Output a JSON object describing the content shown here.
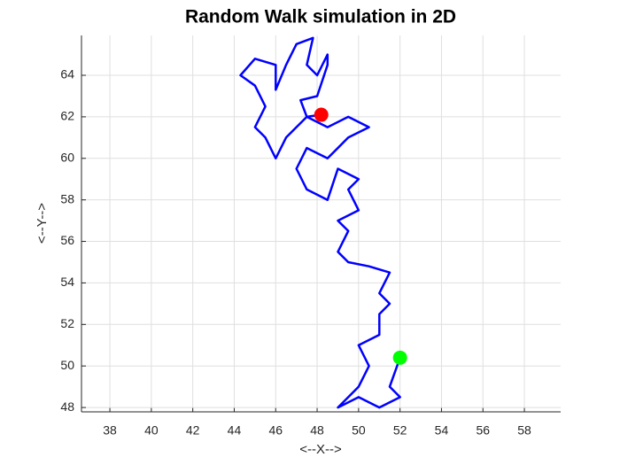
{
  "chart_data": {
    "type": "line",
    "title": "Random Walk simulation in 2D",
    "xlabel": "<--X-->",
    "ylabel": "<--Y-->",
    "xlim": [
      36.63,
      59.75
    ],
    "ylim": [
      47.79,
      65.92
    ],
    "xticks": [
      38,
      40,
      42,
      44,
      46,
      48,
      50,
      52,
      54,
      56,
      58
    ],
    "yticks": [
      48,
      50,
      52,
      54,
      56,
      58,
      60,
      62,
      64
    ],
    "grid": true,
    "series": [
      {
        "color": "#0000ff",
        "marker": false,
        "x": [
          52,
          51.5,
          52,
          51,
          50,
          49,
          50,
          50.5,
          50,
          51,
          51,
          51.5,
          51,
          51.5,
          50.5,
          49.5,
          49,
          49.5,
          49,
          50,
          49.5,
          50,
          49,
          48.5,
          47.5,
          47,
          47.5,
          48.5,
          49.5,
          50.5,
          49.5,
          48.5,
          47.5,
          46.5,
          46,
          45.5,
          45,
          45.5,
          45,
          44.3,
          45,
          46,
          46,
          46.5,
          47,
          47.8,
          47.5,
          48,
          48.5,
          48.5,
          48,
          47.2,
          47.5,
          48.2
        ],
        "values": [
          50.4,
          49,
          48.5,
          48,
          48.5,
          48,
          49,
          50,
          51,
          51.5,
          52.5,
          53,
          53.5,
          54.5,
          54.8,
          55,
          55.5,
          56.5,
          57,
          57.5,
          58.5,
          59,
          59.5,
          58,
          58.5,
          59.5,
          60.5,
          60,
          61,
          61.5,
          62,
          61.5,
          62,
          61,
          60,
          61,
          61.5,
          62.5,
          63.5,
          64,
          64.8,
          64.5,
          63.3,
          64.5,
          65.5,
          65.8,
          64.5,
          64,
          65,
          64.5,
          63,
          62.8,
          62,
          62.1
        ]
      },
      {
        "color": "#00ff00",
        "marker": true,
        "x": [
          52
        ],
        "values": [
          50.4
        ]
      },
      {
        "color": "#ff0000",
        "marker": true,
        "x": [
          48.2
        ],
        "values": [
          62.1
        ]
      }
    ]
  }
}
